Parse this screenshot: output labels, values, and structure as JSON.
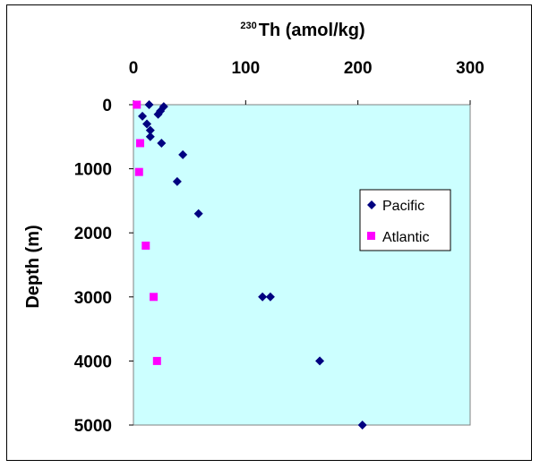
{
  "chart_data": {
    "type": "scatter",
    "title": {
      "sup": "230",
      "main": "Th (amol/kg)"
    },
    "ylabel": "Depth (m)",
    "xlim": [
      0,
      300
    ],
    "ylim": [
      0,
      5000
    ],
    "y_inverted": true,
    "x_axis_position": "top",
    "x_ticks": [
      0,
      100,
      200,
      300
    ],
    "x_tick_labels": [
      "0",
      "100",
      "200",
      "300"
    ],
    "y_ticks": [
      0,
      1000,
      2000,
      3000,
      4000,
      5000
    ],
    "y_tick_labels": [
      "0",
      "1000",
      "2000",
      "3000",
      "4000",
      "5000"
    ],
    "grid": false,
    "plot_background": "#ccffff",
    "legend_position": "right",
    "series": [
      {
        "name": "Pacific",
        "marker": "diamond",
        "color": "#000080",
        "points": [
          {
            "x": 14,
            "y": 0
          },
          {
            "x": 27,
            "y": 30
          },
          {
            "x": 24,
            "y": 100
          },
          {
            "x": 22,
            "y": 150
          },
          {
            "x": 8,
            "y": 180
          },
          {
            "x": 12,
            "y": 300
          },
          {
            "x": 15,
            "y": 400
          },
          {
            "x": 15,
            "y": 500
          },
          {
            "x": 25,
            "y": 600
          },
          {
            "x": 44,
            "y": 780
          },
          {
            "x": 39,
            "y": 1200
          },
          {
            "x": 58,
            "y": 1700
          },
          {
            "x": 115,
            "y": 3000
          },
          {
            "x": 122,
            "y": 3000
          },
          {
            "x": 166,
            "y": 4000
          },
          {
            "x": 204,
            "y": 5000
          }
        ]
      },
      {
        "name": "Atlantic",
        "marker": "square",
        "color": "#ff00ff",
        "points": [
          {
            "x": 3,
            "y": 0
          },
          {
            "x": 6,
            "y": 600
          },
          {
            "x": 5,
            "y": 1050
          },
          {
            "x": 11,
            "y": 2200
          },
          {
            "x": 18,
            "y": 3000
          },
          {
            "x": 21,
            "y": 4000
          }
        ]
      }
    ]
  }
}
